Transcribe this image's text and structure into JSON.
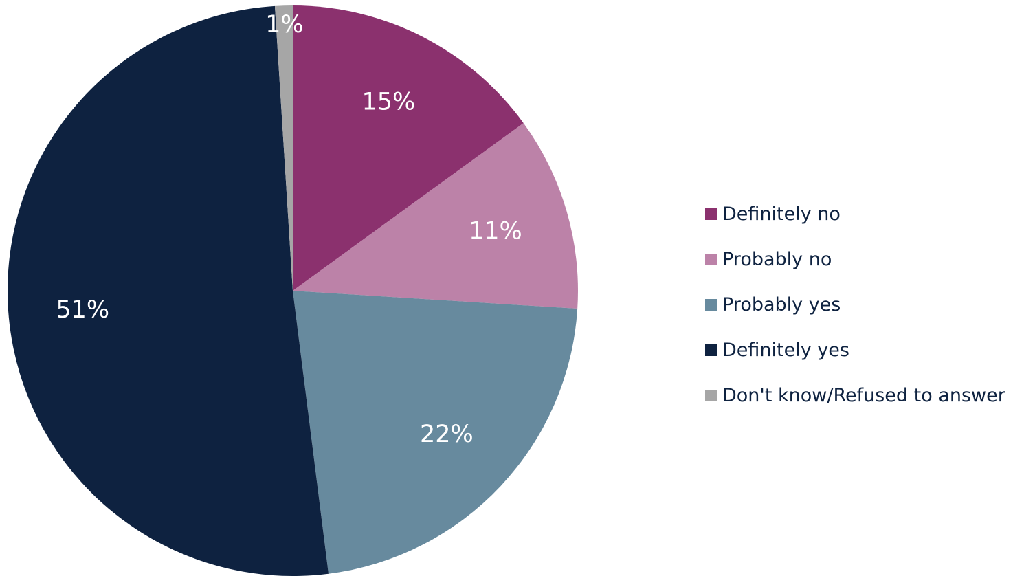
{
  "chart_data": {
    "type": "pie",
    "title": "",
    "start_angle_deg": 0,
    "direction": "clockwise",
    "legend_position": "right",
    "slices": [
      {
        "label": "Definitely no",
        "value": 15,
        "display": "15%",
        "color": "#8b316e"
      },
      {
        "label": "Probably no",
        "value": 11,
        "display": "11%",
        "color": "#bc82a8"
      },
      {
        "label": "Probably yes",
        "value": 22,
        "display": "22%",
        "color": "#678a9e"
      },
      {
        "label": "Definitely yes",
        "value": 51,
        "display": "51%",
        "color": "#0e2240"
      },
      {
        "label": "Don't know/Refused to answer",
        "value": 1,
        "display": "1%",
        "color": "#a6a6a6"
      }
    ]
  },
  "legend": {
    "items": [
      {
        "label": "Definitely no",
        "color": "#8b316e"
      },
      {
        "label": "Probably no",
        "color": "#bc82a8"
      },
      {
        "label": "Probably yes",
        "color": "#678a9e"
      },
      {
        "label": "Definitely yes",
        "color": "#0e2240"
      },
      {
        "label": "Don't know/Refused to answer",
        "color": "#a6a6a6"
      }
    ]
  }
}
